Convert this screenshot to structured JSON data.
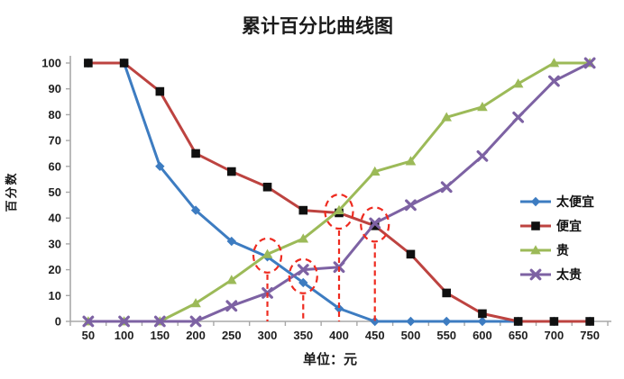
{
  "chart_data": {
    "type": "line",
    "title": "累计百分比曲线图",
    "xlabel": "单位：元",
    "ylabel": "百分数",
    "x": [
      50,
      100,
      150,
      200,
      250,
      300,
      350,
      400,
      450,
      500,
      550,
      600,
      650,
      700,
      750
    ],
    "ylim": [
      0,
      100
    ],
    "ytick_step": 10,
    "grid": false,
    "legend_position": "right",
    "axis_color": "#a8a8a8",
    "text_color": "#1a1a1a",
    "series": [
      {
        "key": "too-cheap",
        "name": "太便宜",
        "color": "#3d7cc1",
        "marker": "diamond",
        "values": [
          100,
          100,
          60,
          43,
          31,
          25,
          15,
          5,
          0,
          0,
          0,
          0,
          0,
          0,
          0
        ]
      },
      {
        "key": "cheap",
        "name": "便宜",
        "color": "#bd4340",
        "marker": "square",
        "marker_color": "#101010",
        "values": [
          100,
          100,
          89,
          65,
          58,
          52,
          43,
          42,
          37,
          26,
          11,
          3,
          0,
          0,
          0
        ]
      },
      {
        "key": "expensive",
        "name": "贵",
        "color": "#9cba58",
        "marker": "triangle",
        "values": [
          0,
          0,
          0,
          7,
          16,
          26,
          32,
          43,
          58,
          62,
          79,
          83,
          92,
          100,
          100
        ]
      },
      {
        "key": "too-expensive",
        "name": "太贵",
        "color": "#7d62a3",
        "marker": "x",
        "values": [
          0,
          0,
          0,
          0,
          6,
          11,
          20,
          21,
          38,
          45,
          52,
          64,
          79,
          93,
          100
        ]
      }
    ],
    "annotations": {
      "color": "#ee2b20",
      "circles": [
        {
          "x": 300,
          "y": 25.5
        },
        {
          "x": 350,
          "y": 17.5
        },
        {
          "x": 400,
          "y": 42.5
        },
        {
          "x": 450,
          "y": 37.5
        }
      ],
      "vlines": [
        {
          "x": 300,
          "from_y": 25.5
        },
        {
          "x": 350,
          "from_y": 17.5
        },
        {
          "x": 400,
          "from_y": 42.5
        },
        {
          "x": 450,
          "from_y": 37.5
        }
      ]
    }
  }
}
